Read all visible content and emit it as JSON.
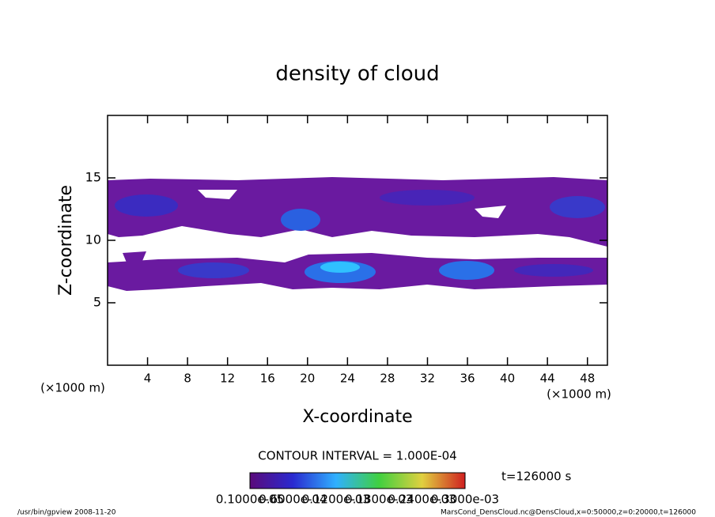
{
  "chart_data": {
    "type": "contour",
    "title": "density of cloud",
    "xlabel": "X-coordinate",
    "ylabel": "Z-coordinate",
    "xunit": "(×1000 m)",
    "yunit": "(×1000 m)",
    "xlim": [
      0,
      50
    ],
    "ylim": [
      0,
      20
    ],
    "xticks": [
      4,
      8,
      12,
      16,
      20,
      24,
      28,
      32,
      36,
      40,
      44,
      48
    ],
    "yticks": [
      5,
      10,
      15
    ],
    "contour_interval": "CONTOUR INTERVAL = 1.000E-04",
    "time_label": "t=126000 s",
    "colorbar_labels": [
      "0.1000e-05",
      "0.6000e-04",
      "0.1200e-03",
      "0.1800e-03",
      "0.2400e-03",
      "0.3000e-03"
    ],
    "footer_left": "/usr/bin/gpview  2008-11-20",
    "footer_right": "MarsCond_DensCloud.nc@DensCloud,x=0:50000,z=0:20000,t=126000"
  }
}
